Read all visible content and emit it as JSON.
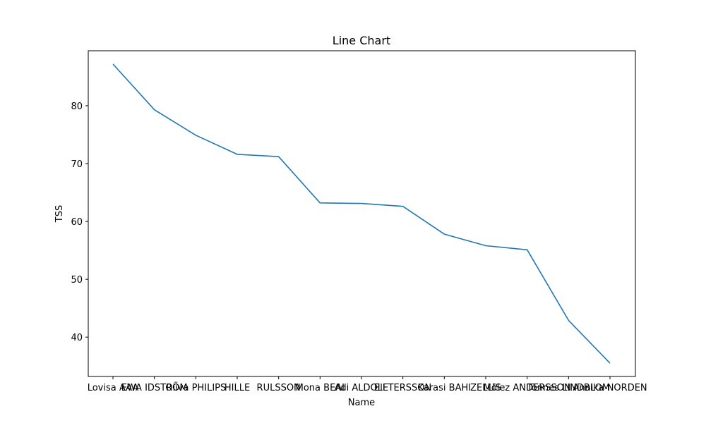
{
  "chart_data": {
    "type": "line",
    "title": "Line Chart",
    "xlabel": "Name",
    "ylabel": "TSS",
    "categories": [
      "Lovisa AAA",
      "EWA IDSTRÖM",
      "Oliva PHILIPS",
      "HILLE",
      "RULSSON",
      "Mona BEAI",
      "Adi ALDOLE",
      "Ell TERSSON",
      "Karasi BAHI",
      "ZELLIS",
      "Mölez ANDERSSON",
      "Tönnes LINDBLOM",
      "Annika NORDEN"
    ],
    "series": [
      {
        "values": [
          87.2,
          79.3,
          74.9,
          71.6,
          71.2,
          63.2,
          63.1,
          62.6,
          57.8,
          55.8,
          55.1,
          42.9,
          35.5
        ],
        "color": "#1f77b4"
      }
    ],
    "ylim": [
      33.2,
      89.5
    ],
    "yticks": [
      40,
      50,
      60,
      70,
      80
    ],
    "grid": false
  }
}
